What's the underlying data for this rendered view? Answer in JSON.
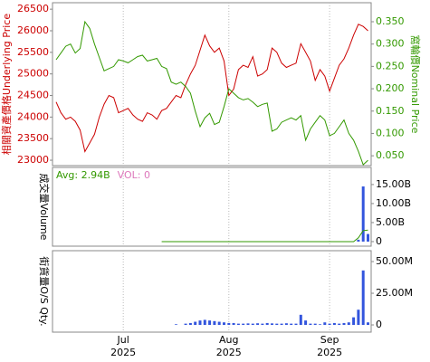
{
  "chart_data": [
    {
      "type": "line",
      "ylabel": "相關資產價格Underlying Price",
      "y2label": "窩輪價Nominal Price",
      "ylim": [
        22875,
        26650
      ],
      "yticks": [
        23000,
        23500,
        24000,
        24500,
        25000,
        25500,
        26000,
        26500
      ],
      "y2lim": [
        0.028,
        0.3925
      ],
      "y2ticks": [
        {
          "value": 0.05,
          "label": "0.050"
        },
        {
          "value": 0.1,
          "label": "0.100"
        },
        {
          "value": 0.15,
          "label": "0.150"
        },
        {
          "value": 0.2,
          "label": "0.200"
        },
        {
          "value": 0.25,
          "label": "0.250"
        },
        {
          "value": 0.3,
          "label": "0.300"
        },
        {
          "value": 0.35,
          "label": "0.350"
        }
      ],
      "series": [
        {
          "color": "#cc0000",
          "values": [
            24350,
            24100,
            23950,
            24000,
            23900,
            23700,
            23200,
            23400,
            23600,
            24000,
            24300,
            24500,
            24450,
            24100,
            24150,
            24200,
            24050,
            23950,
            23900,
            24100,
            24050,
            23950,
            24150,
            24200,
            24350,
            24500,
            24450,
            24750,
            25000,
            25200,
            25550,
            25900,
            25650,
            25500,
            25600,
            25300,
            24500,
            24650,
            25100,
            25200,
            25150,
            25400,
            24950,
            25000,
            25100,
            25600,
            25500,
            25250,
            25150,
            25200,
            25250,
            25700,
            25500,
            25300,
            24850,
            25100,
            24950,
            24600,
            24900,
            25200,
            25350,
            25600,
            25900,
            26150,
            26100,
            26000
          ]
        },
        {
          "color": "#339900",
          "axis": "y2",
          "values": [
            0.265,
            0.28,
            0.295,
            0.3,
            0.28,
            0.29,
            0.35,
            0.335,
            0.3,
            0.27,
            0.24,
            0.245,
            0.25,
            0.265,
            0.262,
            0.258,
            0.265,
            0.272,
            0.275,
            0.262,
            0.265,
            0.268,
            0.25,
            0.245,
            0.215,
            0.21,
            0.215,
            0.205,
            0.19,
            0.15,
            0.115,
            0.135,
            0.145,
            0.12,
            0.125,
            0.16,
            0.2,
            0.19,
            0.18,
            0.175,
            0.178,
            0.17,
            0.16,
            0.165,
            0.168,
            0.105,
            0.11,
            0.125,
            0.13,
            0.135,
            0.13,
            0.14,
            0.085,
            0.11,
            0.125,
            0.14,
            0.13,
            0.095,
            0.1,
            0.115,
            0.13,
            0.1,
            0.085,
            0.06,
            0.03,
            0.04
          ]
        }
      ]
    },
    {
      "type": "bar",
      "ylabel": "成交量Volume",
      "annotations": [
        {
          "text": "Avg: 2.94B",
          "color": "#339900"
        },
        {
          "text": "VOL: 0",
          "color": "#dd77bb"
        }
      ],
      "ylim": [
        -1.2,
        19.5
      ],
      "yticks": [
        0,
        {
          "value": 5,
          "label": "5.00B"
        },
        {
          "value": 10,
          "label": "10.00B"
        },
        {
          "value": 15,
          "label": "15.00B"
        }
      ],
      "series": [
        {
          "type": "bar",
          "color": "#3355dd",
          "values": [
            0,
            0,
            0,
            0,
            0,
            0,
            0,
            0,
            0,
            0,
            0,
            0,
            0,
            0,
            0,
            0,
            0,
            0,
            0,
            0,
            0,
            0,
            0,
            0,
            0,
            0,
            0,
            0,
            0,
            0,
            0,
            0,
            0,
            0,
            0,
            0,
            0,
            0,
            0,
            0,
            0,
            0,
            0,
            0,
            0,
            0,
            0,
            0,
            0,
            0,
            0,
            0,
            0,
            0,
            0,
            0,
            0,
            0,
            0,
            0,
            0,
            0,
            0,
            0.5,
            14.5,
            2.0
          ]
        },
        {
          "type": "line",
          "color": "#339900",
          "values": [
            null,
            null,
            null,
            null,
            null,
            null,
            null,
            null,
            null,
            null,
            null,
            null,
            null,
            null,
            null,
            null,
            null,
            null,
            null,
            null,
            null,
            null,
            0,
            0,
            0,
            0,
            0,
            0,
            0,
            0,
            0,
            0,
            0,
            0,
            0,
            0,
            0,
            0,
            0,
            0,
            0,
            0,
            0,
            0,
            0,
            0,
            0,
            0,
            0,
            0,
            0,
            0,
            0,
            0,
            0,
            0,
            0,
            0,
            0,
            0,
            0,
            0,
            0,
            1.0,
            2.9,
            3.0
          ]
        }
      ]
    },
    {
      "type": "bar",
      "ylabel": "街貨量O/S Qty.",
      "ylim": [
        -5.7,
        58.6
      ],
      "yticks": [
        0,
        {
          "value": 25,
          "label": "25.00M"
        },
        {
          "value": 50,
          "label": "50.00M"
        }
      ],
      "xlim": [
        -0.75,
        65.66
      ],
      "xticks": [
        {
          "value": 14,
          "label": "Jul\n2025"
        },
        {
          "value": 36,
          "label": "Aug\n2025"
        },
        {
          "value": 57,
          "label": "Sep\n2025"
        }
      ],
      "series": [
        {
          "type": "bar",
          "color": "#3355dd",
          "values": [
            null,
            null,
            null,
            null,
            null,
            null,
            null,
            null,
            null,
            null,
            null,
            null,
            null,
            null,
            null,
            null,
            null,
            null,
            null,
            null,
            null,
            null,
            null,
            null,
            null,
            0.5,
            0,
            1.0,
            1.5,
            2.5,
            3.5,
            4.0,
            3.5,
            3.0,
            2.5,
            2.0,
            1.5,
            1.5,
            1.0,
            1.0,
            1.2,
            1.0,
            1.3,
            1.0,
            1.5,
            1.2,
            1.0,
            1.0,
            1.3,
            1.0,
            1.0,
            8.0,
            3.5,
            1.0,
            1.0,
            0.5,
            2.0,
            1.0,
            1.5,
            1.0,
            1.5,
            2.0,
            6.0,
            12.0,
            43.0,
            2.0
          ]
        }
      ]
    }
  ]
}
